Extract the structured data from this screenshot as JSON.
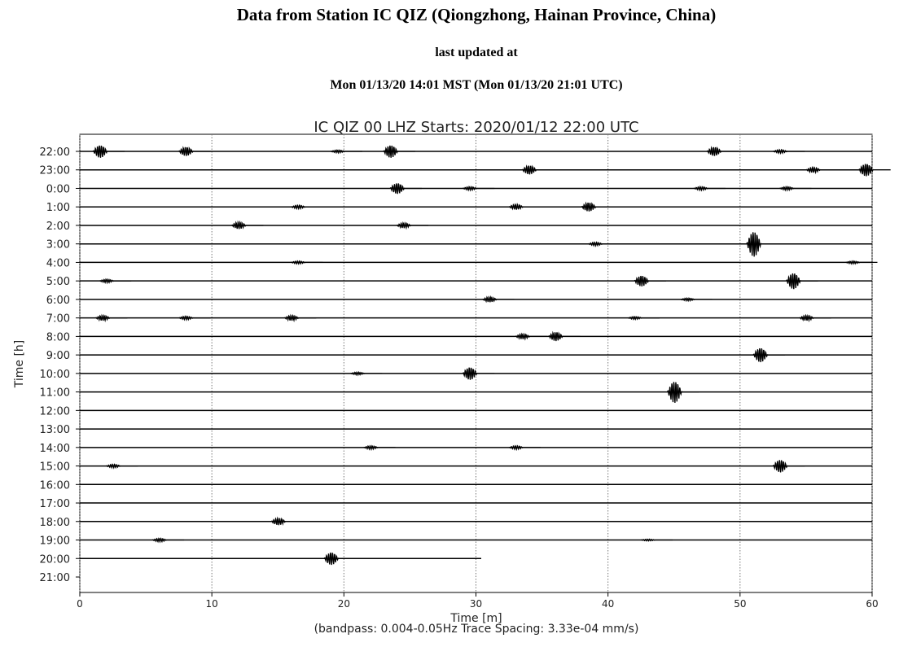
{
  "header": {
    "title": "Data from Station IC QIZ (Qiongzhong, Hainan Province, China)",
    "updated_label": "last updated at",
    "updated_time": "Mon 01/13/20 14:01 MST (Mon 01/13/20 21:01 UTC)"
  },
  "chart_data": {
    "type": "helicorder",
    "title": "IC QIZ 00 LHZ  Starts: 2020/01/12 22:00 UTC",
    "xlabel": "Time [m]",
    "ylabel": "Time [h]",
    "subtitle": "(bandpass: 0.004-0.05Hz  Trace Spacing: 3.33e-04 mm/s)",
    "xlim": [
      0,
      60
    ],
    "xticks": [
      0,
      10,
      20,
      30,
      40,
      50,
      60
    ],
    "grid": true,
    "color": "#000000",
    "categories": [
      "22:00",
      "23:00",
      "0:00",
      "1:00",
      "2:00",
      "3:00",
      "4:00",
      "5:00",
      "6:00",
      "7:00",
      "8:00",
      "9:00",
      "10:00",
      "11:00",
      "12:00",
      "13:00",
      "14:00",
      "15:00",
      "16:00",
      "17:00",
      "18:00",
      "19:00",
      "20:00",
      "21:00"
    ],
    "traces": [
      {
        "end": 60,
        "bursts": [
          {
            "t": 1,
            "amp": 0.35
          },
          {
            "t": 7.5,
            "amp": 0.25
          },
          {
            "t": 19,
            "amp": 0.08
          },
          {
            "t": 23,
            "amp": 0.35
          },
          {
            "t": 47.5,
            "amp": 0.25
          },
          {
            "t": 52.5,
            "amp": 0.1
          }
        ]
      },
      {
        "end": 60,
        "bursts": [
          {
            "t": 33.5,
            "amp": 0.25
          },
          {
            "t": 55,
            "amp": 0.15
          },
          {
            "t": 59,
            "amp": 0.35
          }
        ]
      },
      {
        "end": 60,
        "bursts": [
          {
            "t": 23.5,
            "amp": 0.3
          },
          {
            "t": 29,
            "amp": 0.1
          },
          {
            "t": 46.5,
            "amp": 0.1
          },
          {
            "t": 53,
            "amp": 0.1
          }
        ]
      },
      {
        "end": 60,
        "bursts": [
          {
            "t": 16,
            "amp": 0.1
          },
          {
            "t": 32.5,
            "amp": 0.15
          },
          {
            "t": 38,
            "amp": 0.25
          }
        ]
      },
      {
        "end": 60,
        "bursts": [
          {
            "t": 11.5,
            "amp": 0.2
          },
          {
            "t": 24,
            "amp": 0.15
          }
        ]
      },
      {
        "end": 60,
        "bursts": [
          {
            "t": 38.5,
            "amp": 0.1
          },
          {
            "t": 50.5,
            "amp": 0.7
          }
        ]
      },
      {
        "end": 60,
        "bursts": [
          {
            "t": 16,
            "amp": 0.08
          },
          {
            "t": 58,
            "amp": 0.08
          }
        ]
      },
      {
        "end": 60,
        "bursts": [
          {
            "t": 1.5,
            "amp": 0.1
          },
          {
            "t": 42,
            "amp": 0.3
          },
          {
            "t": 53.5,
            "amp": 0.45
          }
        ]
      },
      {
        "end": 60,
        "bursts": [
          {
            "t": 30.5,
            "amp": 0.15
          },
          {
            "t": 45.5,
            "amp": 0.08
          }
        ]
      },
      {
        "end": 60,
        "bursts": [
          {
            "t": 1.2,
            "amp": 0.15
          },
          {
            "t": 7.5,
            "amp": 0.1
          },
          {
            "t": 15.5,
            "amp": 0.15
          },
          {
            "t": 41.5,
            "amp": 0.08
          },
          {
            "t": 54.5,
            "amp": 0.15
          }
        ]
      },
      {
        "end": 60,
        "bursts": [
          {
            "t": 33,
            "amp": 0.15
          },
          {
            "t": 35.5,
            "amp": 0.25
          }
        ]
      },
      {
        "end": 60,
        "bursts": [
          {
            "t": 51,
            "amp": 0.4
          }
        ]
      },
      {
        "end": 60,
        "bursts": [
          {
            "t": 20.5,
            "amp": 0.08
          },
          {
            "t": 29,
            "amp": 0.35
          }
        ]
      },
      {
        "end": 60,
        "bursts": [
          {
            "t": 44.5,
            "amp": 0.6
          }
        ]
      },
      {
        "end": 60,
        "bursts": []
      },
      {
        "end": 60,
        "bursts": []
      },
      {
        "end": 60,
        "bursts": [
          {
            "t": 21.5,
            "amp": 0.1
          },
          {
            "t": 32.5,
            "amp": 0.1
          }
        ]
      },
      {
        "end": 60,
        "bursts": [
          {
            "t": 2,
            "amp": 0.1
          },
          {
            "t": 52.5,
            "amp": 0.35
          }
        ]
      },
      {
        "end": 60,
        "bursts": []
      },
      {
        "end": 60,
        "bursts": []
      },
      {
        "end": 60,
        "bursts": [
          {
            "t": 14.5,
            "amp": 0.2
          }
        ]
      },
      {
        "end": 60,
        "bursts": [
          {
            "t": 5.5,
            "amp": 0.1
          },
          {
            "t": 42.5,
            "amp": 0.05
          }
        ]
      },
      {
        "end": 30.4,
        "bursts": [
          {
            "t": 18.5,
            "amp": 0.35
          }
        ]
      },
      {
        "end": null,
        "bursts": []
      }
    ]
  }
}
